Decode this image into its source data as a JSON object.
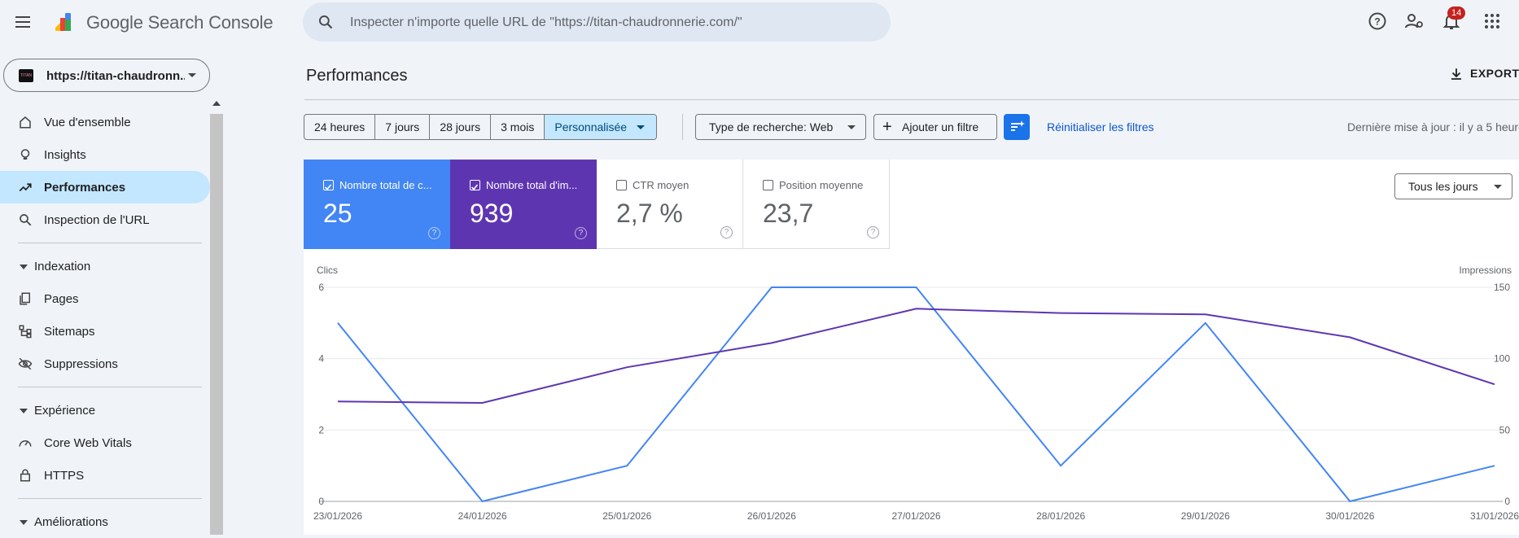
{
  "app": {
    "brand": "Google Search Console",
    "search_placeholder": "Inspecter n'importe quelle URL de \"https://titan-chaudronnerie.com/\"",
    "notifications_count": "14",
    "property": "https://titan-chaudronn..."
  },
  "sidebar": {
    "items": [
      {
        "label": "Vue d'ensemble",
        "icon": "home-icon"
      },
      {
        "label": "Insights",
        "icon": "lightbulb-icon"
      },
      {
        "label": "Performances",
        "icon": "trending-up-icon",
        "active": true
      },
      {
        "label": "Inspection de l'URL",
        "icon": "search-icon"
      }
    ],
    "sections": [
      {
        "label": "Indexation",
        "items": [
          {
            "label": "Pages",
            "icon": "pages-icon"
          },
          {
            "label": "Sitemaps",
            "icon": "sitemap-icon"
          },
          {
            "label": "Suppressions",
            "icon": "eye-off-icon"
          }
        ]
      },
      {
        "label": "Expérience",
        "items": [
          {
            "label": "Core Web Vitals",
            "icon": "speed-icon"
          },
          {
            "label": "HTTPS",
            "icon": "lock-icon"
          }
        ]
      },
      {
        "label": "Améliorations",
        "items": []
      }
    ]
  },
  "main": {
    "title": "Performances",
    "export_label": "EXPORTER",
    "date_ranges": [
      "24 heures",
      "7 jours",
      "28 jours",
      "3 mois",
      "Personnalisée"
    ],
    "selected_range": "Personnalisée",
    "search_type": "Type de recherche: Web",
    "add_filter": "Ajouter un filtre",
    "reset_filters": "Réinitialiser les filtres",
    "last_update": "Dernière mise à jour : il y a 5 heures",
    "days_selector": "Tous les jours"
  },
  "metrics": [
    {
      "label": "Nombre total de c...",
      "value": "25",
      "checked": true,
      "color": "#4285f4"
    },
    {
      "label": "Nombre total d'im...",
      "value": "939",
      "checked": true,
      "color": "#5e35b1"
    },
    {
      "label": "CTR moyen",
      "value": "2,7 %",
      "checked": false
    },
    {
      "label": "Position moyenne",
      "value": "23,7",
      "checked": false
    }
  ],
  "chart_data": {
    "type": "line",
    "x": [
      "23/01/2026",
      "24/01/2026",
      "25/01/2026",
      "26/01/2026",
      "27/01/2026",
      "28/01/2026",
      "29/01/2026",
      "30/01/2026",
      "31/01/2026"
    ],
    "ylabel_left": "Clics",
    "ylabel_right": "Impressions",
    "ylim_left": [
      0,
      6
    ],
    "ylim_right": [
      0,
      150
    ],
    "yticks_left": [
      0,
      2,
      4,
      6
    ],
    "yticks_right": [
      0,
      50,
      100,
      150
    ],
    "series": [
      {
        "name": "Clics",
        "axis": "left",
        "color": "#4285f4",
        "values": [
          5,
          0,
          1,
          6,
          6,
          1,
          5,
          0,
          1
        ]
      },
      {
        "name": "Impressions",
        "axis": "right",
        "color": "#5e35b1",
        "values": [
          70,
          69,
          94,
          111,
          135,
          132,
          131,
          115,
          82
        ]
      }
    ],
    "grid": true
  }
}
